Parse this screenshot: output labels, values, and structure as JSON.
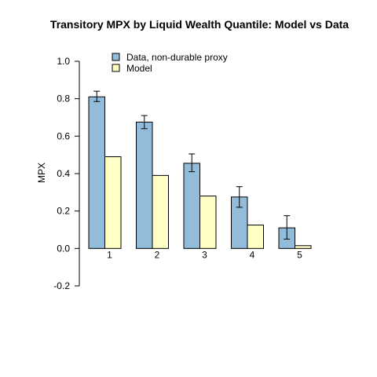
{
  "chart_data": {
    "type": "bar",
    "title": "Transitory MPX by Liquid Wealth Quantile: Model vs Data",
    "xlabel": "",
    "ylabel": "MPX",
    "categories": [
      "1",
      "2",
      "3",
      "4",
      "5"
    ],
    "ylim": [
      -0.2,
      1.0
    ],
    "yticks": [
      "-0.2",
      "0.0",
      "0.2",
      "0.4",
      "0.6",
      "0.8",
      "1.0"
    ],
    "grid": false,
    "legend_position": "top-left",
    "series": [
      {
        "name": "Data, non-durable proxy",
        "color": "#92bcd9",
        "values": [
          0.81,
          0.675,
          0.455,
          0.275,
          0.11
        ],
        "error_low": [
          0.785,
          0.64,
          0.41,
          0.22,
          0.05
        ],
        "error_high": [
          0.84,
          0.71,
          0.505,
          0.33,
          0.175
        ]
      },
      {
        "name": "Model",
        "color": "#ffffc6",
        "values": [
          0.49,
          0.39,
          0.28,
          0.125,
          0.015
        ]
      }
    ]
  }
}
